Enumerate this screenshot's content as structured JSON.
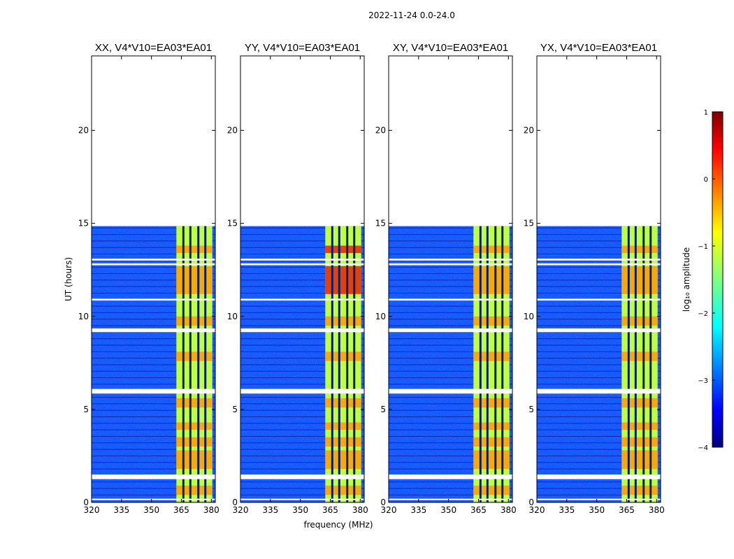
{
  "chart_data": {
    "type": "heatmap",
    "suptitle": "2022-11-24 0.0-24.0",
    "xlabel": "frequency (MHz)",
    "ylabel": "UT (hours)",
    "xlim": [
      320,
      382
    ],
    "ylim": [
      0,
      24
    ],
    "xticks": [
      320,
      335,
      350,
      365,
      380
    ],
    "yticks": [
      0,
      5,
      10,
      15,
      20
    ],
    "data_time_range_hours": [
      0,
      14.85
    ],
    "rfi_band_mhz": [
      362.5,
      380.5
    ],
    "rfi_gap_channels_mhz": [
      366,
      369.5,
      373.5,
      377
    ],
    "flagged_time_gaps_hours": [
      [
        0.15,
        0.2
      ],
      [
        1.25,
        1.5
      ],
      [
        5.85,
        6.1
      ],
      [
        9.15,
        9.35
      ],
      [
        10.85,
        10.95
      ],
      [
        12.75,
        12.85
      ],
      [
        13.0,
        13.1
      ]
    ],
    "panels": [
      {
        "polarization": "XX",
        "title": "XX, V4*V10=EA03*EA01"
      },
      {
        "polarization": "YY",
        "title": "YY, V4*V10=EA03*EA01"
      },
      {
        "polarization": "XY",
        "title": "XY, V4*V10=EA03*EA01"
      },
      {
        "polarization": "YX",
        "title": "YX, V4*V10=EA03*EA01"
      }
    ],
    "colorbar": {
      "label": "log$_{10}$ amplitude",
      "label_display": "log₁₀ amplitude",
      "range": [
        -4,
        1
      ],
      "ticks": [
        "1",
        "0",
        "−1",
        "−2",
        "−3",
        "−4"
      ],
      "colormap": "jet"
    }
  }
}
